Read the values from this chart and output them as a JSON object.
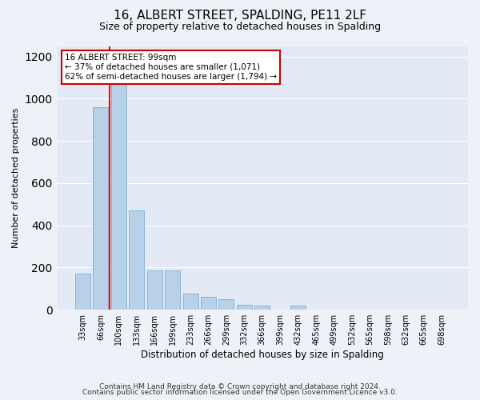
{
  "title": "16, ALBERT STREET, SPALDING, PE11 2LF",
  "subtitle": "Size of property relative to detached houses in Spalding",
  "xlabel": "Distribution of detached houses by size in Spalding",
  "ylabel": "Number of detached properties",
  "bar_labels": [
    "33sqm",
    "66sqm",
    "100sqm",
    "133sqm",
    "166sqm",
    "199sqm",
    "233sqm",
    "266sqm",
    "299sqm",
    "332sqm",
    "366sqm",
    "399sqm",
    "432sqm",
    "465sqm",
    "499sqm",
    "532sqm",
    "565sqm",
    "598sqm",
    "632sqm",
    "665sqm",
    "698sqm"
  ],
  "bar_values": [
    170,
    960,
    1070,
    470,
    185,
    185,
    75,
    60,
    50,
    25,
    20,
    0,
    20,
    0,
    0,
    0,
    0,
    0,
    0,
    0,
    0
  ],
  "bar_color": "#b8d0e8",
  "bar_edge_color": "#7bafd4",
  "red_line_index": 2,
  "annotation_line1": "16 ALBERT STREET: 99sqm",
  "annotation_line2": "← 37% of detached houses are smaller (1,071)",
  "annotation_line3": "62% of semi-detached houses are larger (1,794) →",
  "annotation_box_color": "#ffffff",
  "annotation_box_edge": "#cc0000",
  "ylim_max": 1250,
  "yticks": [
    0,
    200,
    400,
    600,
    800,
    1000,
    1200
  ],
  "footer1": "Contains HM Land Registry data © Crown copyright and database right 2024.",
  "footer2": "Contains public sector information licensed under the Open Government Licence v3.0.",
  "bg_color": "#eef2f8",
  "plot_bg_color": "#e4eaf5",
  "grid_color": "#ffffff",
  "title_fontsize": 11,
  "subtitle_fontsize": 9,
  "ylabel_fontsize": 8,
  "xlabel_fontsize": 8.5,
  "tick_fontsize": 7,
  "footer_fontsize": 6.5
}
